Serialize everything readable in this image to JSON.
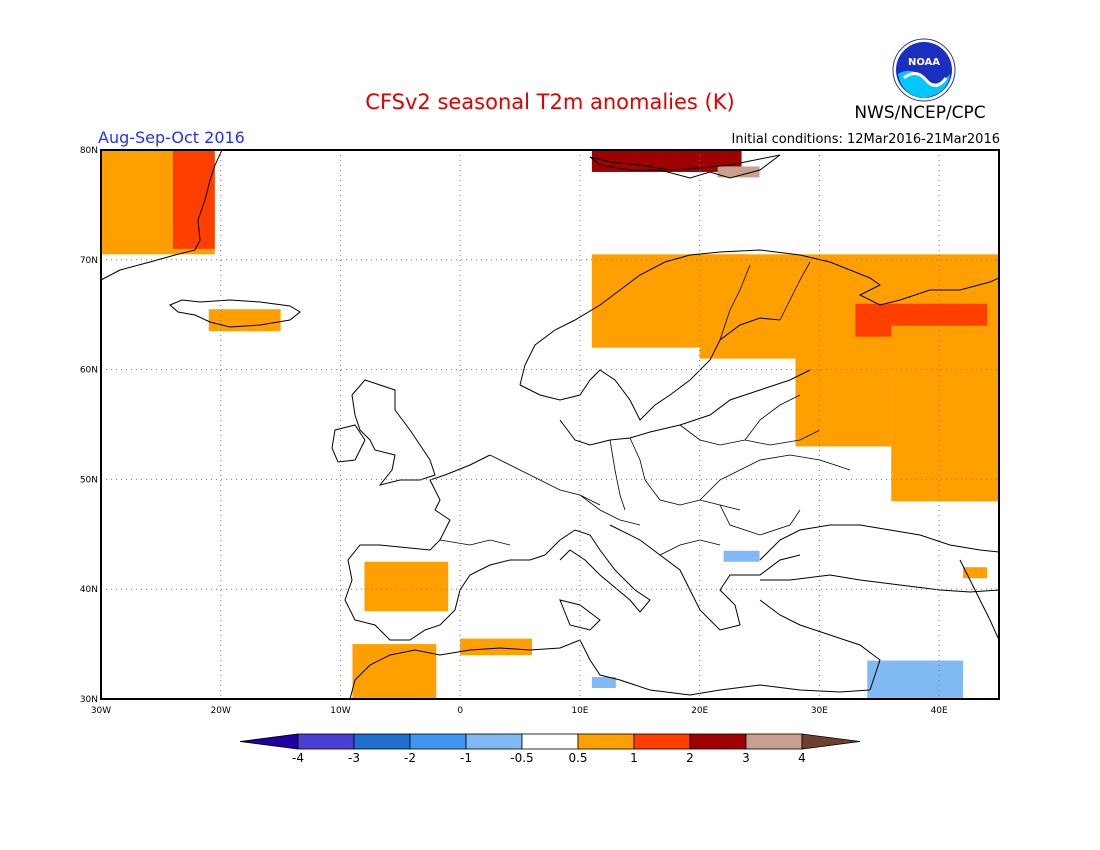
{
  "title": "CFSv2 seasonal T2m anomalies (K)",
  "period": "Aug-Sep-Oct 2016",
  "initial_conditions": "Initial conditions: 12Mar2016-21Mar2016",
  "agency": "NWS/NCEP/CPC",
  "logo_text": "NOAA",
  "map": {
    "lon_ticks": [
      {
        "value": -30,
        "label": "30W"
      },
      {
        "value": -20,
        "label": "20W"
      },
      {
        "value": -10,
        "label": "10W"
      },
      {
        "value": 0,
        "label": "0"
      },
      {
        "value": 10,
        "label": "10E"
      },
      {
        "value": 20,
        "label": "20E"
      },
      {
        "value": 30,
        "label": "30E"
      },
      {
        "value": 40,
        "label": "40E"
      }
    ],
    "lat_ticks": [
      {
        "value": 30,
        "label": "30N"
      },
      {
        "value": 40,
        "label": "40N"
      },
      {
        "value": 50,
        "label": "50N"
      },
      {
        "value": 60,
        "label": "60N"
      },
      {
        "value": 70,
        "label": "70N"
      },
      {
        "value": 80,
        "label": "80N"
      }
    ],
    "lon_range": [
      -30,
      45
    ],
    "lat_range": [
      30,
      80
    ],
    "grid": "dotted"
  },
  "legend": {
    "bins": [
      {
        "color": "#1f00a0"
      },
      {
        "color": "#4a3fd0"
      },
      {
        "color": "#1f6ed0"
      },
      {
        "color": "#3f95f0"
      },
      {
        "color": "#7fbaf5"
      },
      {
        "color": "#ffffff"
      },
      {
        "color": "#ffa000"
      },
      {
        "color": "#ff3f00"
      },
      {
        "color": "#a00000"
      },
      {
        "color": "#c8a090"
      },
      {
        "color": "#6e4030"
      }
    ],
    "labels": [
      "-4",
      "-3",
      "-2",
      "-1",
      "-0.5",
      "0.5",
      "1",
      "2",
      "3",
      "4"
    ]
  },
  "colors": {
    "anomaly_0.5_1": "#ffa000",
    "anomaly_1_2": "#ff3f00",
    "anomaly_2_3": "#a00000",
    "anomaly_3_4": "#c8a090",
    "anomaly_-0.5_-1": "#7fbaf5",
    "title": "#e00000",
    "period": "#2030ff"
  },
  "anomaly_regions": [
    {
      "name": "greenland",
      "color": "#ffa000",
      "lon": [
        -30,
        -20.5
      ],
      "lat": [
        70.5,
        80
      ]
    },
    {
      "name": "greenland-east-warm",
      "color": "#ff3f00",
      "lon": [
        -24,
        -20.5
      ],
      "lat": [
        71,
        80
      ]
    },
    {
      "name": "iceland",
      "color": "#ffa000",
      "lon": [
        -21,
        -15
      ],
      "lat": [
        63.5,
        65.5
      ]
    },
    {
      "name": "svalbard",
      "color": "#a00000",
      "lon": [
        11,
        23.5
      ],
      "lat": [
        78,
        80
      ]
    },
    {
      "name": "svalbard-east",
      "color": "#c8a090",
      "lon": [
        21.5,
        25
      ],
      "lat": [
        77.5,
        78.5
      ]
    },
    {
      "name": "norway-coast",
      "color": "#ffa000",
      "lon": [
        11,
        24
      ],
      "lat": [
        62,
        70.5
      ]
    },
    {
      "name": "lapland",
      "color": "#ffa000",
      "lon": [
        20,
        45
      ],
      "lat": [
        61,
        70.5
      ]
    },
    {
      "name": "kola-warm",
      "color": "#ff3f00",
      "lon": [
        33,
        44
      ],
      "lat": [
        63,
        66
      ]
    },
    {
      "name": "russia-east",
      "color": "#ffa000",
      "lon": [
        36,
        45
      ],
      "lat": [
        48,
        64
      ]
    },
    {
      "name": "russia-central",
      "color": "#ffa000",
      "lon": [
        28,
        36
      ],
      "lat": [
        53,
        62
      ]
    },
    {
      "name": "iberia",
      "color": "#ffa000",
      "lon": [
        -8,
        -1
      ],
      "lat": [
        38,
        42.5
      ]
    },
    {
      "name": "morocco",
      "color": "#ffa000",
      "lon": [
        -9,
        -2
      ],
      "lat": [
        30,
        35
      ]
    },
    {
      "name": "algeria-patch",
      "color": "#ffa000",
      "lon": [
        0,
        6
      ],
      "lat": [
        34,
        35.5
      ]
    },
    {
      "name": "balkan-cool",
      "color": "#7fbaf5",
      "lon": [
        22,
        25
      ],
      "lat": [
        42.5,
        43.5
      ]
    },
    {
      "name": "middle-east-cool",
      "color": "#7fbaf5",
      "lon": [
        34,
        42
      ],
      "lat": [
        30,
        33.5
      ]
    },
    {
      "name": "libya-cool",
      "color": "#7fbaf5",
      "lon": [
        11,
        13
      ],
      "lat": [
        31,
        32
      ]
    },
    {
      "name": "caucasus-warm",
      "color": "#ffa000",
      "lon": [
        42,
        44
      ],
      "lat": [
        41,
        42
      ]
    }
  ]
}
